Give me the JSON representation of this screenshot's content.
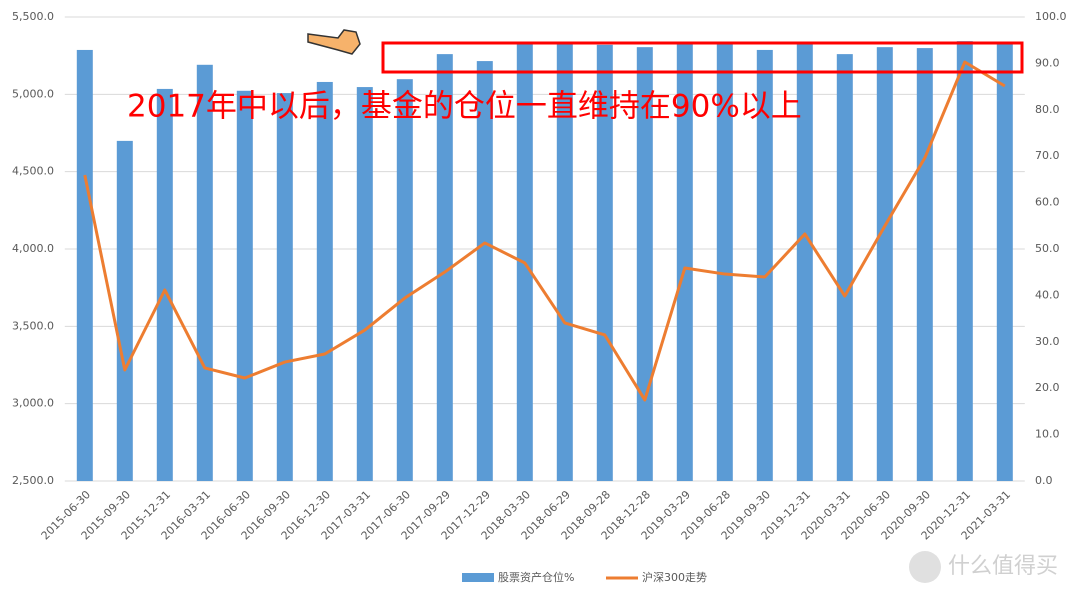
{
  "chart_data": {
    "type": "combo",
    "annotation": "2017年中以后，基金的仓位一直维持在90%以上",
    "watermark": "什么值得买",
    "categories": [
      "2015-06-30",
      "2015-09-30",
      "2015-12-31",
      "2016-03-31",
      "2016-06-30",
      "2016-09-30",
      "2016-12-30",
      "2017-03-31",
      "2017-06-30",
      "2017-09-29",
      "2017-12-29",
      "2018-03-30",
      "2018-06-29",
      "2018-09-28",
      "2018-12-28",
      "2019-03-29",
      "2019-06-28",
      "2019-09-30",
      "2019-12-31",
      "2020-03-31",
      "2020-06-30",
      "2020-09-30",
      "2020-12-31",
      "2021-03-31"
    ],
    "series": [
      {
        "name": "股票资产仓位%",
        "type": "bar",
        "axis": "y2",
        "color": "#5b9bd5",
        "values": [
          92.9,
          73.3,
          84.5,
          89.7,
          84.1,
          83.6,
          86.0,
          84.9,
          86.6,
          92.0,
          90.5,
          94.4,
          94.5,
          94.0,
          93.5,
          94.5,
          94.5,
          92.9,
          94.5,
          92.0,
          93.5,
          93.3,
          94.8,
          94.5
        ]
      },
      {
        "name": "沪深300走势",
        "type": "line",
        "axis": "y",
        "color": "#ed7d31",
        "values": [
          4478,
          3218,
          3735,
          3231,
          3166,
          3269,
          3321,
          3476,
          3683,
          3851,
          4039,
          3910,
          3522,
          3444,
          3024,
          3877,
          3838,
          3819,
          4097,
          3696,
          4149,
          4589,
          5209,
          5054
        ]
      }
    ],
    "ylim": [
      2500,
      5500
    ],
    "yticks": [
      {
        "value": 2500,
        "label": "2,500.0"
      },
      {
        "value": 3000,
        "label": "3,000.0"
      },
      {
        "value": 3500,
        "label": "3,500.0"
      },
      {
        "value": 4000,
        "label": "4,000.0"
      },
      {
        "value": 4500,
        "label": "4,500.0"
      },
      {
        "value": 5000,
        "label": "5,000.0"
      },
      {
        "value": 5500,
        "label": "5,500.0"
      }
    ],
    "y2lim": [
      0,
      100
    ],
    "y2ticks": [
      {
        "value": 0,
        "label": "0.0"
      },
      {
        "value": 10,
        "label": "10.0"
      },
      {
        "value": 20,
        "label": "20.0"
      },
      {
        "value": 30,
        "label": "30.0"
      },
      {
        "value": 40,
        "label": "40.0"
      },
      {
        "value": 50,
        "label": "50.0"
      },
      {
        "value": 60,
        "label": "60.0"
      },
      {
        "value": 70,
        "label": "70.0"
      },
      {
        "value": 80,
        "label": "80.0"
      },
      {
        "value": 90,
        "label": "90.0"
      },
      {
        "value": 100,
        "label": "100.0"
      }
    ],
    "grid": true
  }
}
